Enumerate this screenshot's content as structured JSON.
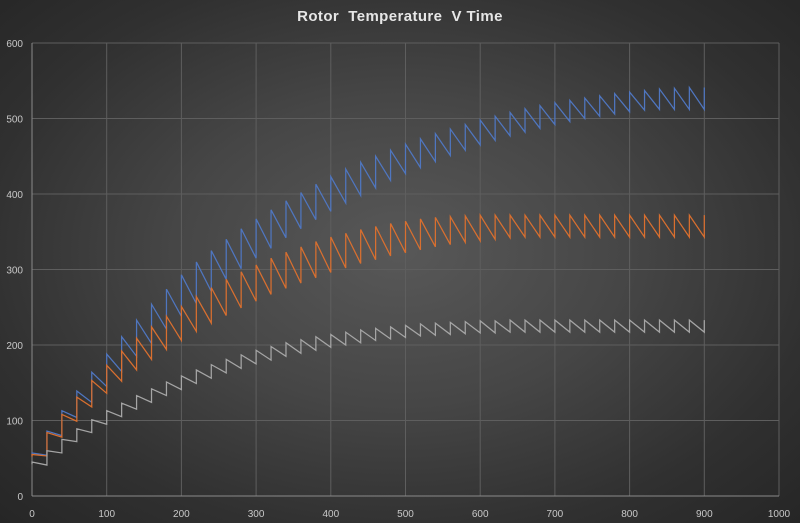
{
  "chart_data": {
    "type": "line",
    "title": "Rotor  Temperature  V Time",
    "xlabel": "",
    "ylabel": "",
    "xlim": [
      0,
      1000
    ],
    "ylim": [
      0,
      600
    ],
    "x_ticks": [
      0,
      100,
      200,
      300,
      400,
      500,
      600,
      700,
      800,
      900,
      1000
    ],
    "y_ticks": [
      0,
      100,
      200,
      300,
      400,
      500,
      600
    ],
    "grid": true,
    "legend": "none",
    "sawtooth_period": 20,
    "series": [
      {
        "color": "#4f76c0",
        "x": [
          0,
          20,
          40,
          60,
          80,
          100,
          120,
          140,
          160,
          180,
          200,
          220,
          240,
          260,
          280,
          300,
          320,
          340,
          360,
          380,
          400,
          420,
          440,
          460,
          480,
          500,
          520,
          540,
          560,
          580,
          600,
          620,
          640,
          660,
          680,
          700,
          720,
          740,
          760,
          780,
          800,
          820,
          840,
          860,
          880,
          900
        ],
        "low": [
          53,
          54,
          80,
          104,
          124,
          145,
          165,
          185,
          202,
          221,
          238,
          255,
          271,
          287,
          301,
          315,
          328,
          342,
          354,
          366,
          377,
          388,
          398,
          408,
          418,
          427,
          435,
          443,
          451,
          458,
          465,
          471,
          477,
          482,
          487,
          492,
          496,
          500,
          503,
          506,
          509,
          511,
          512,
          512,
          512,
          512
        ],
        "high": [
          57,
          86,
          113,
          139,
          164,
          188,
          211,
          233,
          254,
          274,
          293,
          310,
          325,
          340,
          354,
          367,
          379,
          391,
          402,
          413,
          423,
          433,
          442,
          450,
          458,
          466,
          473,
          480,
          486,
          492,
          498,
          503,
          508,
          513,
          517,
          521,
          524,
          527,
          530,
          533,
          535,
          537,
          539,
          540,
          541,
          541
        ]
      },
      {
        "color": "#d96f2f",
        "x": [
          0,
          20,
          40,
          60,
          80,
          100,
          120,
          140,
          160,
          180,
          200,
          220,
          240,
          260,
          280,
          300,
          320,
          340,
          360,
          380,
          400,
          420,
          440,
          460,
          480,
          500,
          520,
          540,
          560,
          580,
          600,
          620,
          640,
          660,
          680,
          700,
          720,
          740,
          760,
          780,
          800,
          820,
          840,
          860,
          880,
          900
        ],
        "low": [
          52,
          53,
          78,
          99,
          118,
          136,
          152,
          167,
          181,
          194,
          206,
          218,
          229,
          239,
          249,
          258,
          267,
          275,
          282,
          289,
          296,
          302,
          308,
          313,
          318,
          322,
          326,
          330,
          333,
          336,
          338,
          340,
          342,
          343,
          343,
          343,
          343,
          343,
          343,
          343,
          343,
          343,
          343,
          343,
          343,
          343
        ],
        "high": [
          55,
          84,
          108,
          131,
          153,
          173,
          192,
          209,
          224,
          238,
          251,
          264,
          276,
          287,
          297,
          306,
          315,
          323,
          330,
          337,
          343,
          348,
          353,
          357,
          361,
          364,
          367,
          369,
          370,
          371,
          372,
          372,
          372,
          372,
          372,
          372,
          372,
          372,
          372,
          372,
          372,
          372,
          372,
          372,
          372,
          372
        ]
      },
      {
        "color": "#a5a5a5",
        "x": [
          0,
          20,
          40,
          60,
          80,
          100,
          120,
          140,
          160,
          180,
          200,
          220,
          240,
          260,
          280,
          300,
          320,
          340,
          360,
          380,
          400,
          420,
          440,
          460,
          480,
          500,
          520,
          540,
          560,
          580,
          600,
          620,
          640,
          660,
          680,
          700,
          720,
          740,
          760,
          780,
          800,
          820,
          840,
          860,
          880,
          900
        ],
        "low": [
          42,
          41,
          57,
          72,
          84,
          95,
          105,
          115,
          124,
          133,
          141,
          149,
          156,
          163,
          169,
          175,
          180,
          185,
          189,
          193,
          197,
          200,
          203,
          206,
          208,
          210,
          212,
          213,
          214,
          215,
          216,
          216,
          217,
          217,
          217,
          217,
          217,
          217,
          217,
          217,
          217,
          217,
          217,
          217,
          217,
          217
        ],
        "high": [
          45,
          60,
          75,
          89,
          101,
          113,
          123,
          133,
          142,
          151,
          159,
          167,
          174,
          181,
          187,
          193,
          198,
          203,
          207,
          211,
          214,
          217,
          220,
          222,
          224,
          226,
          228,
          229,
          230,
          231,
          232,
          232,
          233,
          233,
          233,
          233,
          233,
          233,
          233,
          233,
          233,
          233,
          233,
          233,
          233,
          233
        ]
      }
    ]
  }
}
